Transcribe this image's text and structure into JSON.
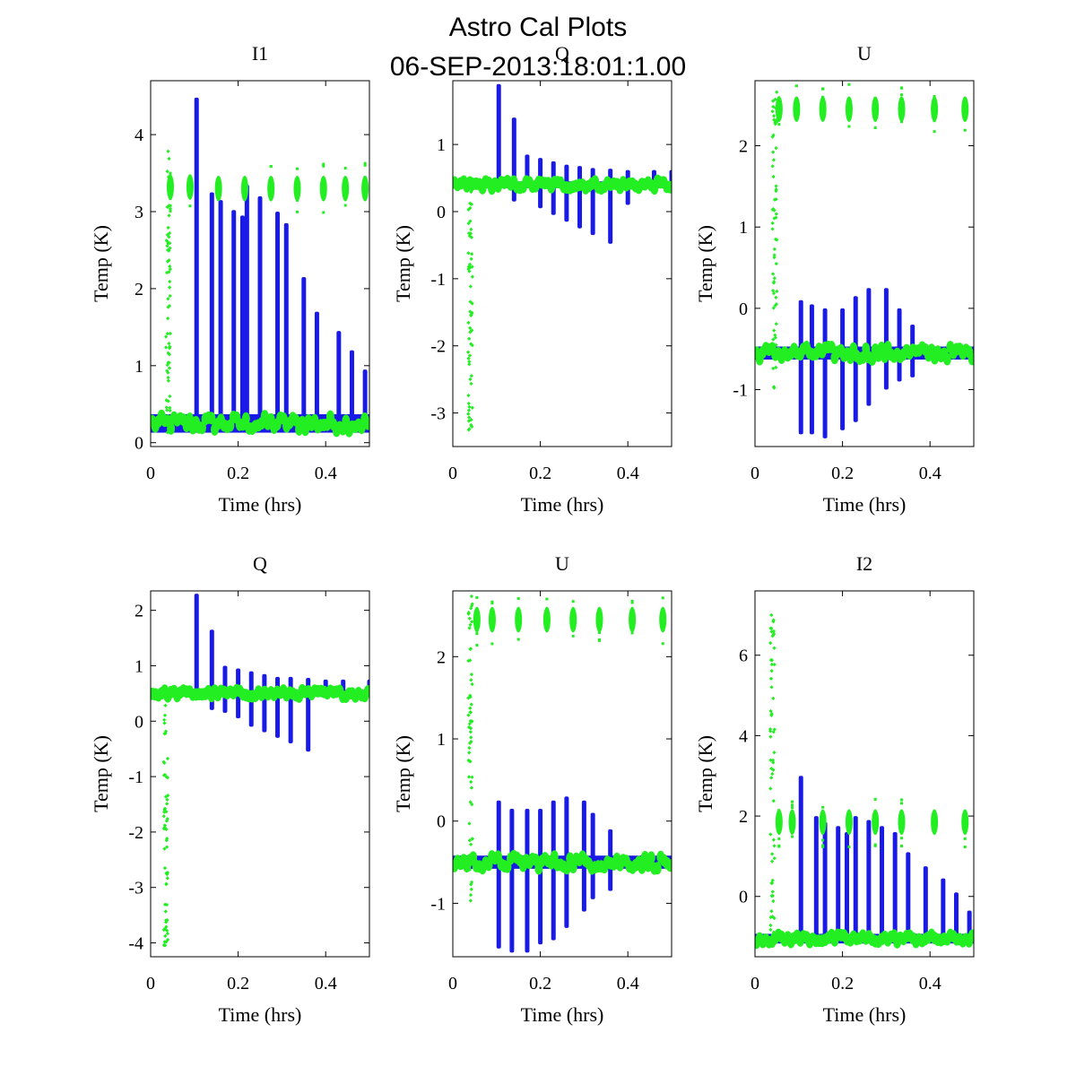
{
  "figure": {
    "title_line1": "Astro Cal Plots",
    "title_line2": "06-SEP-2013:18:01:1.00"
  },
  "colors": {
    "blue": "#1a1ae6",
    "green": "#22ee22",
    "axes": "#000000"
  },
  "chart_data": [
    {
      "type": "scatter",
      "title": "I1",
      "xlabel": "Time (hrs)",
      "ylabel": "Temp (K)",
      "xlim": [
        0,
        0.5
      ],
      "ylim": [
        -0.05,
        4.7
      ],
      "xticks": [
        0,
        0.2,
        0.4
      ],
      "xtick_labels": [
        "0",
        "0.2",
        "0.4"
      ],
      "yticks": [
        0,
        1,
        2,
        3,
        4
      ],
      "ytick_labels": [
        "0",
        "1",
        "2",
        "3",
        "4"
      ],
      "baseline": {
        "name": "blue",
        "y": 0.25,
        "spread": 0.12
      },
      "blue_spikes": [
        {
          "x": 0.105,
          "top": 4.48
        },
        {
          "x": 0.14,
          "top": 3.25
        },
        {
          "x": 0.16,
          "top": 3.15
        },
        {
          "x": 0.19,
          "top": 3.02
        },
        {
          "x": 0.21,
          "top": 2.95
        },
        {
          "x": 0.22,
          "top": 3.35
        },
        {
          "x": 0.25,
          "top": 3.2
        },
        {
          "x": 0.29,
          "top": 3.0
        },
        {
          "x": 0.31,
          "top": 2.85
        },
        {
          "x": 0.35,
          "top": 2.15
        },
        {
          "x": 0.38,
          "top": 1.7
        },
        {
          "x": 0.43,
          "top": 1.45
        },
        {
          "x": 0.46,
          "top": 1.2
        },
        {
          "x": 0.49,
          "top": 0.95
        }
      ],
      "green_clusters": [
        {
          "x": 0.045,
          "y": 3.32
        },
        {
          "x": 0.09,
          "y": 3.32
        },
        {
          "x": 0.155,
          "y": 3.3
        },
        {
          "x": 0.215,
          "y": 3.3
        },
        {
          "x": 0.275,
          "y": 3.3
        },
        {
          "x": 0.335,
          "y": 3.3
        },
        {
          "x": 0.395,
          "y": 3.3
        },
        {
          "x": 0.445,
          "y": 3.3
        },
        {
          "x": 0.49,
          "y": 3.3
        }
      ],
      "green_streak": {
        "x": 0.04,
        "y0": 0.1,
        "y1": 3.8
      },
      "green_baseline": {
        "y": 0.25,
        "spread": 0.1
      }
    },
    {
      "type": "scatter",
      "title": "Q",
      "xlabel": "Time (hrs)",
      "ylabel": "Temp (K)",
      "xlim": [
        0,
        0.5
      ],
      "ylim": [
        -3.5,
        1.95
      ],
      "xticks": [
        0,
        0.2,
        0.4
      ],
      "xtick_labels": [
        "0",
        "0.2",
        "0.4"
      ],
      "yticks": [
        -3,
        -2,
        -1,
        0,
        1
      ],
      "ytick_labels": [
        "-3",
        "-2",
        "-1",
        "0",
        "1"
      ],
      "baseline": {
        "name": "blue",
        "y": 0.4,
        "spread": 0.05
      },
      "blue_spikes": [
        {
          "x": 0.105,
          "top": 1.9
        },
        {
          "x": 0.14,
          "top": 1.4
        },
        {
          "x": 0.17,
          "top": 0.85
        },
        {
          "x": 0.2,
          "top": 0.8
        },
        {
          "x": 0.23,
          "top": 0.75
        },
        {
          "x": 0.26,
          "top": 0.7
        },
        {
          "x": 0.29,
          "top": 0.68
        },
        {
          "x": 0.32,
          "top": 0.65
        },
        {
          "x": 0.36,
          "top": 0.64
        },
        {
          "x": 0.4,
          "top": 0.62
        },
        {
          "x": 0.46,
          "top": 0.62
        },
        {
          "x": 0.5,
          "top": 0.62
        }
      ],
      "blue_dips": [
        {
          "x": 0.14,
          "bottom": 0.15
        },
        {
          "x": 0.2,
          "bottom": 0.05
        },
        {
          "x": 0.23,
          "bottom": -0.05
        },
        {
          "x": 0.26,
          "bottom": -0.15
        },
        {
          "x": 0.29,
          "bottom": -0.25
        },
        {
          "x": 0.32,
          "bottom": -0.35
        },
        {
          "x": 0.36,
          "bottom": -0.48
        },
        {
          "x": 0.4,
          "bottom": 0.1
        }
      ],
      "green_streak": {
        "x": 0.04,
        "y0": -3.3,
        "y1": 0.4
      },
      "green_baseline": {
        "y": 0.4,
        "spread": 0.06
      }
    },
    {
      "type": "scatter",
      "title": "U",
      "xlabel": "Time (hrs)",
      "ylabel": "Temp (K)",
      "xlim": [
        0,
        0.5
      ],
      "ylim": [
        -1.7,
        2.8
      ],
      "xticks": [
        0,
        0.2,
        0.4
      ],
      "xtick_labels": [
        "0",
        "0.2",
        "0.4"
      ],
      "yticks": [
        -1,
        0,
        1,
        2
      ],
      "ytick_labels": [
        "-1",
        "0",
        "1",
        "2"
      ],
      "baseline": {
        "name": "blue",
        "y": -0.55,
        "spread": 0.08
      },
      "blue_spikes": [
        {
          "x": 0.105,
          "top": 0.1
        },
        {
          "x": 0.13,
          "top": 0.05
        },
        {
          "x": 0.16,
          "top": 0.0
        },
        {
          "x": 0.2,
          "top": 0.0
        },
        {
          "x": 0.23,
          "top": 0.15
        },
        {
          "x": 0.26,
          "top": 0.25
        },
        {
          "x": 0.3,
          "top": 0.25
        },
        {
          "x": 0.33,
          "top": 0.0
        },
        {
          "x": 0.36,
          "top": -0.2
        }
      ],
      "blue_dips": [
        {
          "x": 0.105,
          "bottom": -1.55
        },
        {
          "x": 0.13,
          "bottom": -1.55
        },
        {
          "x": 0.16,
          "bottom": -1.6
        },
        {
          "x": 0.2,
          "bottom": -1.5
        },
        {
          "x": 0.23,
          "bottom": -1.4
        },
        {
          "x": 0.26,
          "bottom": -1.2
        },
        {
          "x": 0.3,
          "bottom": -1.0
        },
        {
          "x": 0.33,
          "bottom": -0.9
        },
        {
          "x": 0.36,
          "bottom": -0.85
        }
      ],
      "green_clusters": [
        {
          "x": 0.055,
          "y": 2.45
        },
        {
          "x": 0.095,
          "y": 2.45
        },
        {
          "x": 0.155,
          "y": 2.45
        },
        {
          "x": 0.215,
          "y": 2.45
        },
        {
          "x": 0.275,
          "y": 2.45
        },
        {
          "x": 0.335,
          "y": 2.45
        },
        {
          "x": 0.41,
          "y": 2.45
        },
        {
          "x": 0.48,
          "y": 2.45
        }
      ],
      "green_streak": {
        "x": 0.045,
        "y0": -1.0,
        "y1": 2.7
      },
      "green_baseline": {
        "y": -0.55,
        "spread": 0.08
      }
    },
    {
      "type": "scatter",
      "title": "Q",
      "xlabel": "Time (hrs)",
      "ylabel": "Temp (K)",
      "xlim": [
        0,
        0.5
      ],
      "ylim": [
        -4.25,
        2.35
      ],
      "xticks": [
        0,
        0.2,
        0.4
      ],
      "xtick_labels": [
        "0",
        "0.2",
        "0.4"
      ],
      "yticks": [
        -4,
        -3,
        -2,
        -1,
        0,
        1,
        2
      ],
      "ytick_labels": [
        "-4",
        "-3",
        "-2",
        "-1",
        "0",
        "1",
        "2"
      ],
      "baseline": {
        "name": "blue",
        "y": 0.5,
        "spread": 0.06
      },
      "blue_spikes": [
        {
          "x": 0.105,
          "top": 2.3
        },
        {
          "x": 0.14,
          "top": 1.65
        },
        {
          "x": 0.17,
          "top": 1.0
        },
        {
          "x": 0.2,
          "top": 0.95
        },
        {
          "x": 0.23,
          "top": 0.9
        },
        {
          "x": 0.26,
          "top": 0.85
        },
        {
          "x": 0.29,
          "top": 0.8
        },
        {
          "x": 0.32,
          "top": 0.8
        },
        {
          "x": 0.36,
          "top": 0.78
        },
        {
          "x": 0.4,
          "top": 0.75
        },
        {
          "x": 0.44,
          "top": 0.75
        },
        {
          "x": 0.5,
          "top": 0.75
        }
      ],
      "blue_dips": [
        {
          "x": 0.14,
          "bottom": 0.2
        },
        {
          "x": 0.17,
          "bottom": 0.15
        },
        {
          "x": 0.2,
          "bottom": 0.05
        },
        {
          "x": 0.23,
          "bottom": -0.1
        },
        {
          "x": 0.26,
          "bottom": -0.2
        },
        {
          "x": 0.29,
          "bottom": -0.3
        },
        {
          "x": 0.32,
          "bottom": -0.4
        },
        {
          "x": 0.36,
          "bottom": -0.55
        }
      ],
      "green_streak": {
        "x": 0.035,
        "y0": -4.1,
        "y1": 0.5
      },
      "green_baseline": {
        "y": 0.5,
        "spread": 0.06
      }
    },
    {
      "type": "scatter",
      "title": "U",
      "xlabel": "Time (hrs)",
      "ylabel": "Temp (K)",
      "xlim": [
        0,
        0.5
      ],
      "ylim": [
        -1.65,
        2.8
      ],
      "xticks": [
        0,
        0.2,
        0.4
      ],
      "xtick_labels": [
        "0",
        "0.2",
        "0.4"
      ],
      "yticks": [
        -1,
        0,
        1,
        2
      ],
      "ytick_labels": [
        "-1",
        "0",
        "1",
        "2"
      ],
      "baseline": {
        "name": "blue",
        "y": -0.5,
        "spread": 0.08
      },
      "blue_spikes": [
        {
          "x": 0.105,
          "top": 0.25
        },
        {
          "x": 0.135,
          "top": 0.15
        },
        {
          "x": 0.17,
          "top": 0.15
        },
        {
          "x": 0.2,
          "top": 0.15
        },
        {
          "x": 0.23,
          "top": 0.25
        },
        {
          "x": 0.26,
          "top": 0.3
        },
        {
          "x": 0.3,
          "top": 0.25
        },
        {
          "x": 0.32,
          "top": 0.1
        },
        {
          "x": 0.36,
          "top": -0.1
        }
      ],
      "blue_dips": [
        {
          "x": 0.105,
          "bottom": -1.55
        },
        {
          "x": 0.135,
          "bottom": -1.6
        },
        {
          "x": 0.17,
          "bottom": -1.6
        },
        {
          "x": 0.2,
          "bottom": -1.5
        },
        {
          "x": 0.23,
          "bottom": -1.45
        },
        {
          "x": 0.26,
          "bottom": -1.3
        },
        {
          "x": 0.3,
          "bottom": -1.1
        },
        {
          "x": 0.32,
          "bottom": -0.95
        },
        {
          "x": 0.36,
          "bottom": -0.85
        }
      ],
      "green_clusters": [
        {
          "x": 0.055,
          "y": 2.45
        },
        {
          "x": 0.09,
          "y": 2.45
        },
        {
          "x": 0.15,
          "y": 2.45
        },
        {
          "x": 0.215,
          "y": 2.45
        },
        {
          "x": 0.275,
          "y": 2.45
        },
        {
          "x": 0.335,
          "y": 2.45
        },
        {
          "x": 0.41,
          "y": 2.45
        },
        {
          "x": 0.48,
          "y": 2.45
        }
      ],
      "green_streak": {
        "x": 0.04,
        "y0": -1.0,
        "y1": 2.75
      },
      "green_baseline": {
        "y": -0.5,
        "spread": 0.08
      }
    },
    {
      "type": "scatter",
      "title": "I2",
      "xlabel": "Time (hrs)",
      "ylabel": "Temp (K)",
      "xlim": [
        0,
        0.5
      ],
      "ylim": [
        -1.5,
        7.6
      ],
      "xticks": [
        0,
        0.2,
        0.4
      ],
      "xtick_labels": [
        "0",
        "0.2",
        "0.4"
      ],
      "yticks": [
        0,
        2,
        4,
        6
      ],
      "ytick_labels": [
        "0",
        "2",
        "4",
        "6"
      ],
      "baseline": {
        "name": "blue",
        "y": -1.05,
        "spread": 0.12
      },
      "blue_spikes": [
        {
          "x": 0.105,
          "top": 3.0
        },
        {
          "x": 0.14,
          "top": 2.0
        },
        {
          "x": 0.16,
          "top": 1.85
        },
        {
          "x": 0.19,
          "top": 1.75
        },
        {
          "x": 0.21,
          "top": 1.6
        },
        {
          "x": 0.23,
          "top": 2.0
        },
        {
          "x": 0.26,
          "top": 1.9
        },
        {
          "x": 0.29,
          "top": 1.75
        },
        {
          "x": 0.32,
          "top": 1.6
        },
        {
          "x": 0.35,
          "top": 1.1
        },
        {
          "x": 0.39,
          "top": 0.75
        },
        {
          "x": 0.43,
          "top": 0.45
        },
        {
          "x": 0.46,
          "top": 0.1
        },
        {
          "x": 0.49,
          "top": -0.35
        }
      ],
      "green_clusters": [
        {
          "x": 0.055,
          "y": 1.85
        },
        {
          "x": 0.085,
          "y": 1.85
        },
        {
          "x": 0.155,
          "y": 1.85
        },
        {
          "x": 0.215,
          "y": 1.85
        },
        {
          "x": 0.275,
          "y": 1.85
        },
        {
          "x": 0.335,
          "y": 1.85
        },
        {
          "x": 0.41,
          "y": 1.85
        },
        {
          "x": 0.48,
          "y": 1.85
        }
      ],
      "green_streak": {
        "x": 0.04,
        "y0": -1.2,
        "y1": 7.3
      },
      "green_baseline": {
        "y": -1.05,
        "spread": 0.1
      }
    }
  ]
}
